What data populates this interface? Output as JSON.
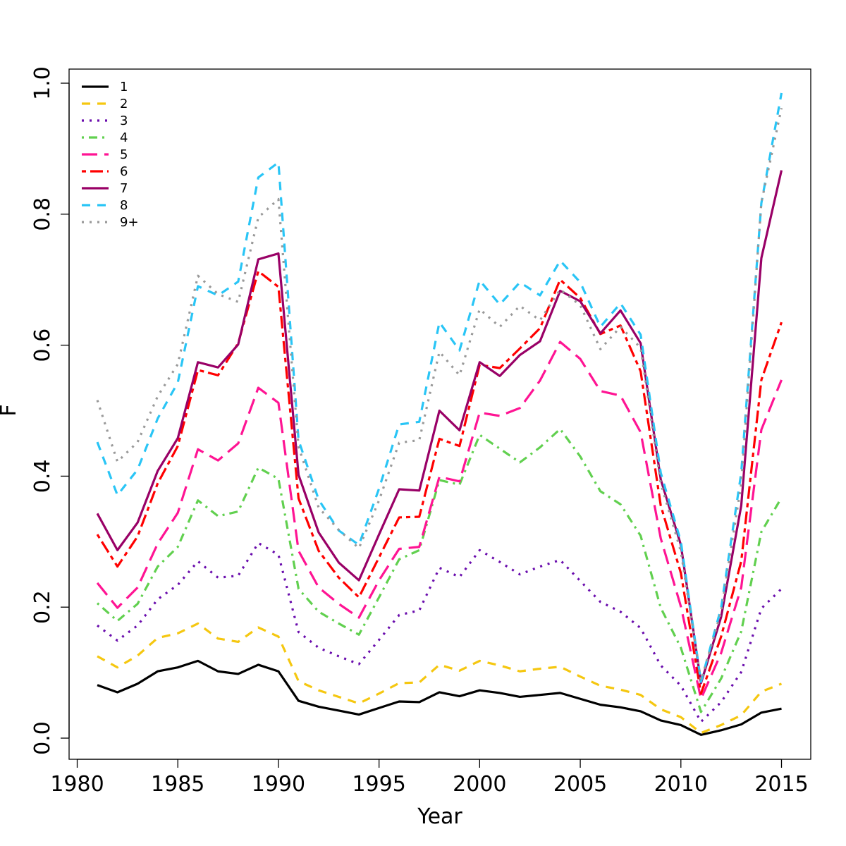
{
  "chart_data": {
    "type": "line",
    "title": "",
    "xlabel": "Year",
    "ylabel": "F",
    "xlim": [
      1980,
      2015
    ],
    "ylim": [
      0.0,
      1.0
    ],
    "xticks": [
      "1980",
      "1985",
      "1990",
      "1995",
      "2000",
      "2005",
      "2010",
      "2015"
    ],
    "yticks": [
      "0.0",
      "0.2",
      "0.4",
      "0.6",
      "0.8",
      "1.0"
    ],
    "grid": false,
    "legend_position": "top-left",
    "x": [
      1981,
      1982,
      1983,
      1984,
      1985,
      1986,
      1987,
      1988,
      1989,
      1990,
      1991,
      1992,
      1993,
      1994,
      1995,
      1996,
      1997,
      1998,
      1999,
      2000,
      2001,
      2002,
      2003,
      2004,
      2005,
      2006,
      2007,
      2008,
      2009,
      2010,
      2011,
      2012,
      2013,
      2014,
      2015
    ],
    "series": [
      {
        "name": "1",
        "color": "#000000",
        "dash": "solid",
        "values": [
          0.081,
          0.07,
          0.083,
          0.102,
          0.108,
          0.118,
          0.102,
          0.098,
          0.112,
          0.102,
          0.057,
          0.048,
          0.042,
          0.036,
          0.046,
          0.056,
          0.055,
          0.07,
          0.064,
          0.073,
          0.069,
          0.063,
          0.066,
          0.069,
          0.06,
          0.051,
          0.047,
          0.041,
          0.027,
          0.02,
          0.005,
          0.012,
          0.021,
          0.039,
          0.045
        ]
      },
      {
        "name": "2",
        "color": "#F5C710",
        "dash": "dashed",
        "values": [
          0.125,
          0.108,
          0.126,
          0.153,
          0.16,
          0.175,
          0.152,
          0.147,
          0.169,
          0.155,
          0.087,
          0.073,
          0.063,
          0.053,
          0.068,
          0.084,
          0.085,
          0.112,
          0.103,
          0.118,
          0.111,
          0.102,
          0.106,
          0.109,
          0.094,
          0.08,
          0.074,
          0.066,
          0.044,
          0.032,
          0.008,
          0.02,
          0.035,
          0.071,
          0.083
        ]
      },
      {
        "name": "3",
        "color": "#6A0DAD",
        "dash": "dotted",
        "values": [
          0.172,
          0.149,
          0.172,
          0.212,
          0.234,
          0.27,
          0.245,
          0.248,
          0.298,
          0.28,
          0.162,
          0.138,
          0.125,
          0.113,
          0.15,
          0.188,
          0.195,
          0.26,
          0.246,
          0.287,
          0.269,
          0.25,
          0.262,
          0.272,
          0.24,
          0.208,
          0.193,
          0.168,
          0.111,
          0.08,
          0.025,
          0.055,
          0.101,
          0.198,
          0.228
        ]
      },
      {
        "name": "4",
        "color": "#61D04F",
        "dash": "dotdash",
        "values": [
          0.206,
          0.179,
          0.205,
          0.262,
          0.292,
          0.363,
          0.339,
          0.346,
          0.413,
          0.396,
          0.228,
          0.193,
          0.175,
          0.158,
          0.215,
          0.273,
          0.287,
          0.394,
          0.387,
          0.463,
          0.442,
          0.421,
          0.444,
          0.472,
          0.43,
          0.377,
          0.357,
          0.309,
          0.199,
          0.138,
          0.04,
          0.091,
          0.163,
          0.315,
          0.367
        ]
      },
      {
        "name": "5",
        "color": "#FF1493",
        "dash": "longdash",
        "values": [
          0.237,
          0.199,
          0.23,
          0.297,
          0.344,
          0.441,
          0.424,
          0.45,
          0.535,
          0.512,
          0.286,
          0.23,
          0.205,
          0.184,
          0.241,
          0.289,
          0.292,
          0.399,
          0.392,
          0.497,
          0.492,
          0.504,
          0.546,
          0.605,
          0.579,
          0.53,
          0.523,
          0.467,
          0.305,
          0.201,
          0.06,
          0.13,
          0.23,
          0.471,
          0.547
        ]
      },
      {
        "name": "6",
        "color": "#FF0000",
        "dash": "twodash",
        "values": [
          0.311,
          0.262,
          0.308,
          0.389,
          0.446,
          0.562,
          0.554,
          0.603,
          0.713,
          0.689,
          0.366,
          0.286,
          0.245,
          0.215,
          0.276,
          0.337,
          0.338,
          0.457,
          0.446,
          0.57,
          0.565,
          0.595,
          0.626,
          0.7,
          0.672,
          0.617,
          0.63,
          0.56,
          0.355,
          0.252,
          0.068,
          0.155,
          0.27,
          0.547,
          0.635
        ]
      },
      {
        "name": "7",
        "color": "#990066",
        "dash": "solid",
        "values": [
          0.343,
          0.287,
          0.329,
          0.408,
          0.458,
          0.574,
          0.566,
          0.601,
          0.731,
          0.74,
          0.402,
          0.314,
          0.268,
          0.241,
          0.311,
          0.38,
          0.378,
          0.5,
          0.47,
          0.574,
          0.553,
          0.585,
          0.606,
          0.683,
          0.667,
          0.618,
          0.653,
          0.603,
          0.395,
          0.295,
          0.084,
          0.185,
          0.355,
          0.733,
          0.867
        ]
      },
      {
        "name": "8",
        "color": "#29C5F6",
        "dash": "dashed",
        "values": [
          0.452,
          0.371,
          0.41,
          0.488,
          0.543,
          0.69,
          0.676,
          0.697,
          0.856,
          0.879,
          0.455,
          0.364,
          0.317,
          0.295,
          0.381,
          0.479,
          0.483,
          0.635,
          0.592,
          0.699,
          0.662,
          0.696,
          0.676,
          0.729,
          0.696,
          0.628,
          0.664,
          0.616,
          0.405,
          0.3,
          0.086,
          0.199,
          0.405,
          0.817,
          0.985
        ]
      },
      {
        "name": "9+",
        "color": "#999999",
        "dash": "dotted",
        "values": [
          0.516,
          0.422,
          0.452,
          0.522,
          0.571,
          0.706,
          0.678,
          0.666,
          0.795,
          0.823,
          0.445,
          0.352,
          0.318,
          0.29,
          0.363,
          0.451,
          0.455,
          0.59,
          0.554,
          0.655,
          0.628,
          0.66,
          0.638,
          0.685,
          0.661,
          0.594,
          0.628,
          0.596,
          0.389,
          0.285,
          0.088,
          0.193,
          0.388,
          0.818,
          0.962
        ]
      }
    ]
  }
}
